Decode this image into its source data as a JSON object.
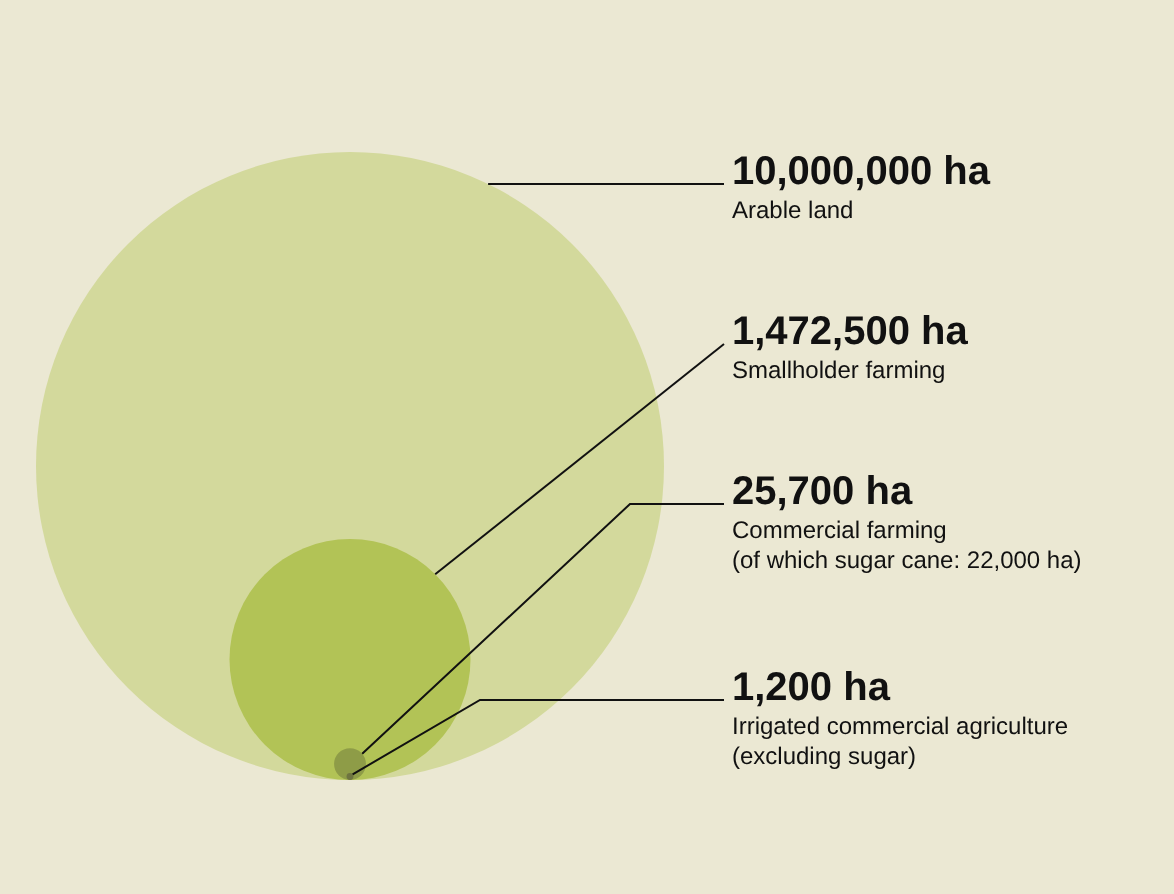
{
  "chart_data": {
    "type": "other",
    "categories": [
      "Arable land",
      "Smallholder farming",
      "Commercial farming\n(of which sugar cane: 22,000 ha)",
      "Irrigated commercial agriculture\n(excluding sugar)"
    ],
    "values": [
      10000000,
      1472500,
      25700,
      1200
    ],
    "value_labels": [
      "10,000,000 ha",
      "1,472,500 ha",
      "25,700 ha",
      "1,200 ha"
    ],
    "colors": [
      "#d3d99c",
      "#b2c356",
      "#8e9c47",
      "#6e7440"
    ]
  }
}
